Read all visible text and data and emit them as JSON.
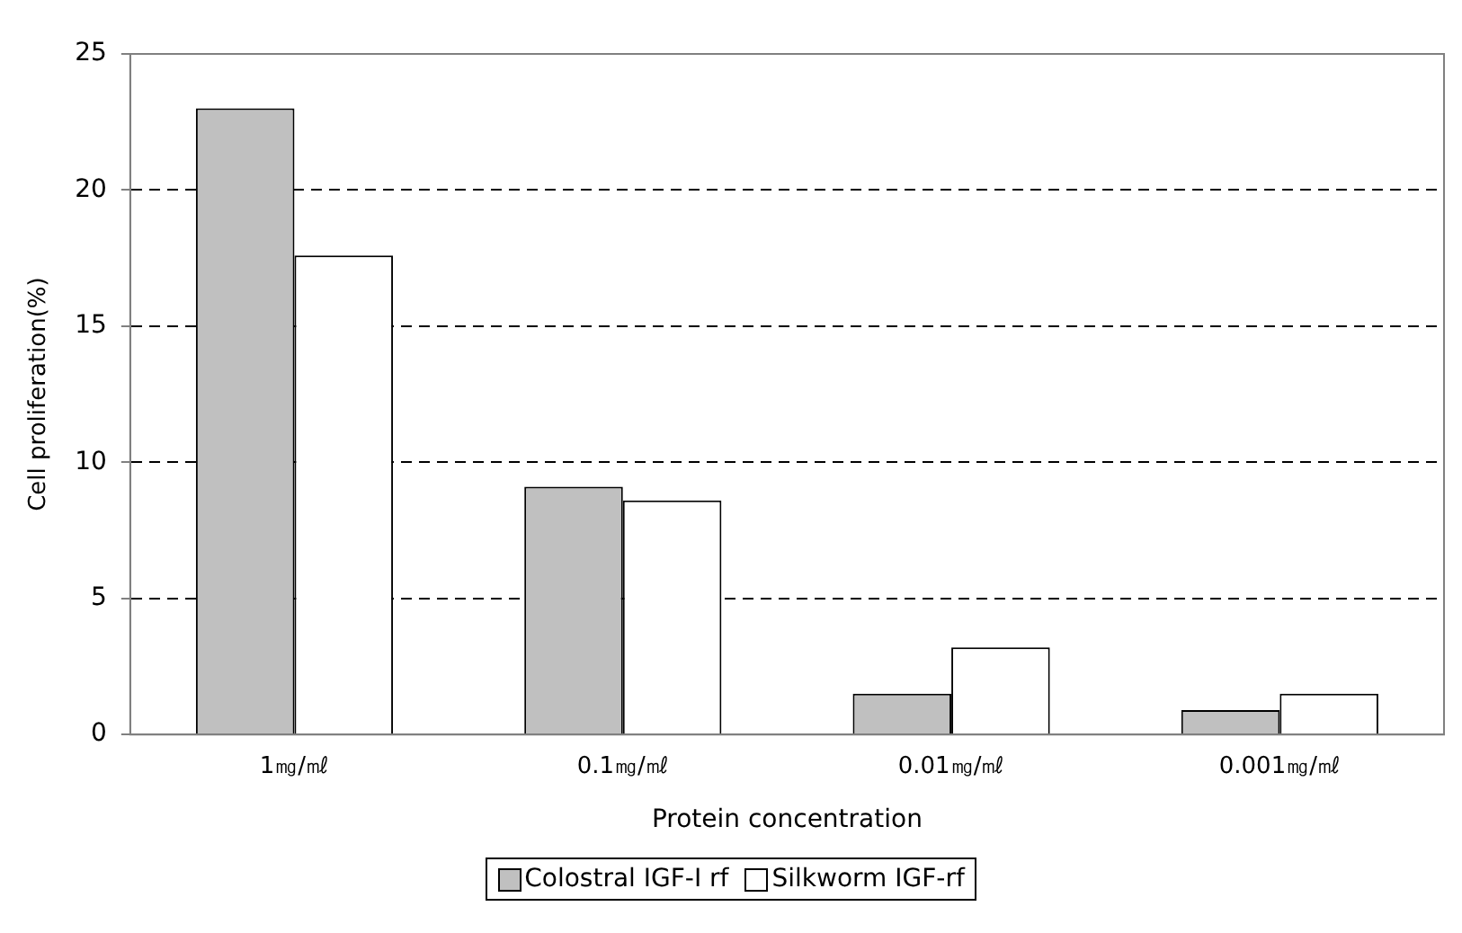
{
  "chart_data": {
    "type": "bar",
    "xlabel": "Protein concentration",
    "ylabel": "Cell proliferation(%)",
    "categories": [
      "1㎎/㎖",
      "0.1㎎/㎖",
      "0.01㎎/㎖",
      "0.001㎎/㎖"
    ],
    "series": [
      {
        "name": "Colostral IGF-I rf",
        "color": "#c0c0c0",
        "values": [
          23.0,
          9.1,
          1.5,
          0.9
        ]
      },
      {
        "name": "Silkworm IGF-rf",
        "color": "#ffffff",
        "values": [
          17.6,
          8.6,
          3.2,
          1.5
        ]
      }
    ],
    "ylim": [
      0,
      25
    ],
    "yticks": [
      0,
      5,
      10,
      15,
      20,
      25
    ],
    "grid": "y",
    "line_style": "dashed",
    "legend": "bottom"
  }
}
